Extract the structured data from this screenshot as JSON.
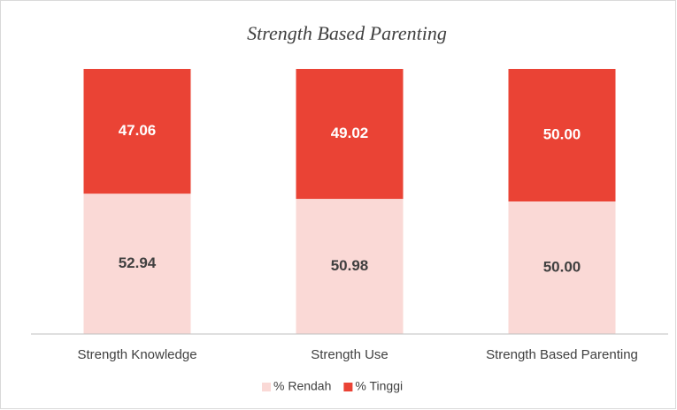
{
  "chart_data": {
    "type": "stacked_bar",
    "title": "Strength Based Parenting",
    "categories": [
      "Strength Knowledge",
      "Strength Use",
      "Strength Based Parenting"
    ],
    "series": [
      {
        "name": "% Rendah",
        "color": "#fad9d6",
        "values": [
          52.94,
          50.98,
          50.0
        ],
        "value_labels": [
          "52.94",
          "50.98",
          "50.00"
        ]
      },
      {
        "name": "% Tinggi",
        "color": "#ea4335",
        "values": [
          47.06,
          49.02,
          50.0
        ],
        "value_labels": [
          "47.06",
          "49.02",
          "50.00"
        ]
      }
    ],
    "ylim": [
      0,
      100
    ],
    "legend": "bottom"
  }
}
